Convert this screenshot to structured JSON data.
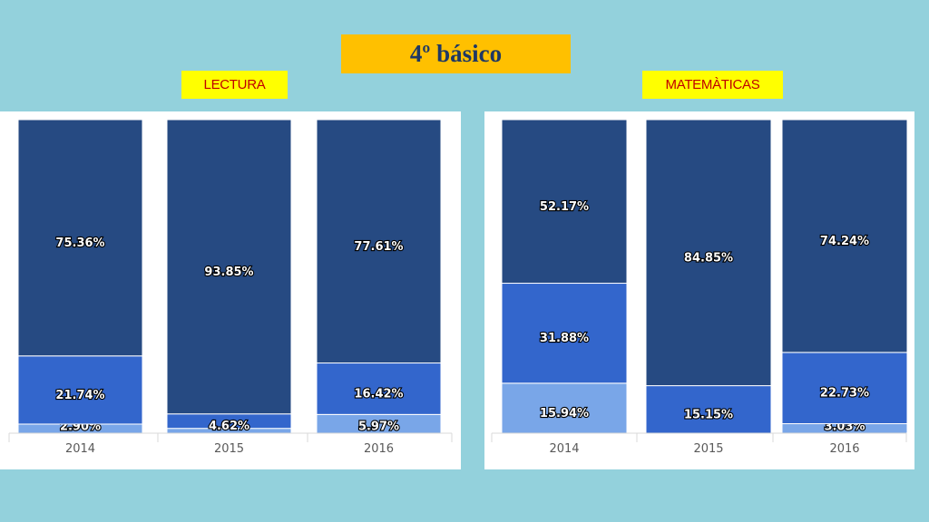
{
  "header": {
    "title": "4º básico"
  },
  "colors": {
    "top_segment": "#264a82",
    "middle_segment": "#3366cc",
    "bottom_segment": "#79a6e8",
    "background": "#93d1dc",
    "title_bg": "#ffc000",
    "subtitle_bg": "#ffff00",
    "subtitle_text": "#c00000"
  },
  "chart_data": [
    {
      "type": "bar",
      "stacked": true,
      "title": "LECTURA",
      "categories": [
        "2014",
        "2015",
        "2016"
      ],
      "series": [
        {
          "values": [
            2.9,
            1.53,
            5.97
          ],
          "labels": [
            "2.90%",
            "",
            "5.97%"
          ],
          "color": "#79a6e8"
        },
        {
          "values": [
            21.74,
            4.62,
            16.42
          ],
          "labels": [
            "21.74%",
            "4.62%",
            "16.42%"
          ],
          "color": "#3366cc"
        },
        {
          "values": [
            75.36,
            93.85,
            77.61
          ],
          "labels": [
            "75.36%",
            "93.85%",
            "77.61%"
          ],
          "color": "#264a82"
        }
      ],
      "ylim": [
        0,
        100
      ]
    },
    {
      "type": "bar",
      "stacked": true,
      "title": "MATEMÀTICAS",
      "categories": [
        "2014",
        "2015",
        "2016"
      ],
      "series": [
        {
          "values": [
            15.94,
            0,
            3.03
          ],
          "labels": [
            "15.94%",
            "",
            "3.03%"
          ],
          "color": "#79a6e8"
        },
        {
          "values": [
            31.88,
            15.15,
            22.73
          ],
          "labels": [
            "31.88%",
            "15.15%",
            "22.73%"
          ],
          "color": "#3366cc"
        },
        {
          "values": [
            52.17,
            84.85,
            74.24
          ],
          "labels": [
            "52.17%",
            "84.85%",
            "74.24%"
          ],
          "color": "#264a82"
        }
      ],
      "ylim": [
        0,
        100
      ]
    }
  ]
}
